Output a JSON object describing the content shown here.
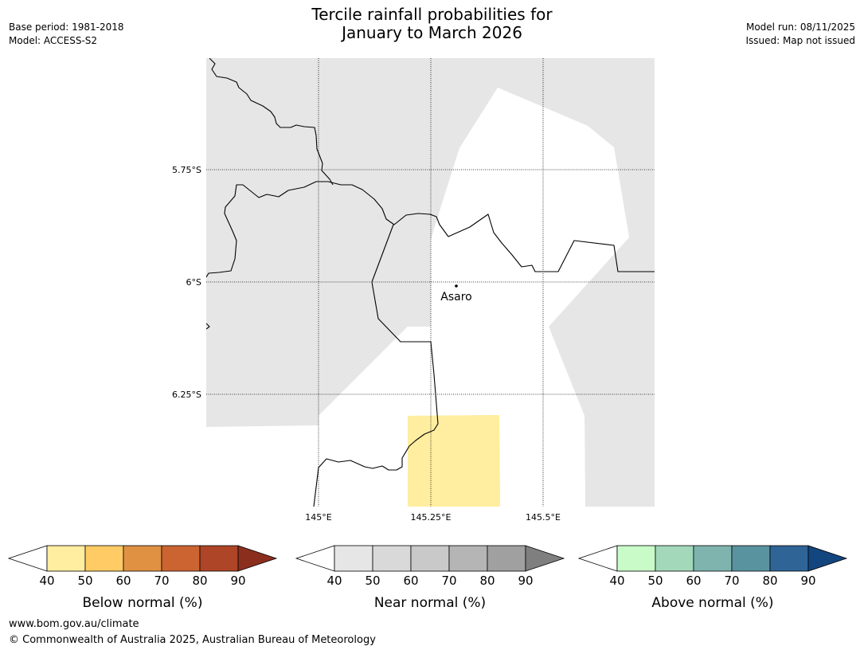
{
  "header": {
    "title_line1": "Tercile rainfall probabilities for",
    "title_line2": "January to March 2026",
    "base_period": "Base period: 1981-2018",
    "model": "Model: ACCESS-S2",
    "model_run": "Model run: 08/11/2025",
    "issued": "Issued: Map not issued"
  },
  "map": {
    "lat_labels": [
      "5.75°S",
      "6°S",
      "6.25°S"
    ],
    "lon_labels": [
      "145°E",
      "145.25°E",
      "145.5°E"
    ],
    "place": {
      "name": "Asaro",
      "lon": 145.31,
      "lat": -6.01
    },
    "colors": {
      "land_neutral": "#e6e6e6",
      "below_40_50": "#ffeda0",
      "boundary": "#000000"
    }
  },
  "legends": [
    {
      "label": "Below normal (%)",
      "ticks": [
        "40",
        "50",
        "60",
        "70",
        "80",
        "90"
      ],
      "colors": [
        "#ffffff",
        "#ffeda0",
        "#fecb65",
        "#e09142",
        "#cc6432",
        "#ae4526",
        "#8c2e1e"
      ]
    },
    {
      "label": "Near normal (%)",
      "ticks": [
        "40",
        "50",
        "60",
        "70",
        "80",
        "90"
      ],
      "colors": [
        "#ffffff",
        "#e6e6e6",
        "#d9d9d9",
        "#c9c9c9",
        "#b5b5b5",
        "#a0a0a0",
        "#7f7f7f"
      ]
    },
    {
      "label": "Above normal (%)",
      "ticks": [
        "40",
        "50",
        "60",
        "70",
        "80",
        "90"
      ],
      "colors": [
        "#ffffff",
        "#c9fbc9",
        "#a3d8bb",
        "#7fb4ae",
        "#5a93a0",
        "#2f6496",
        "#13457e"
      ]
    }
  ],
  "footer": {
    "url": "www.bom.gov.au/climate",
    "copyright": "© Commonwealth of Australia 2025, Australian Bureau of Meteorology"
  }
}
